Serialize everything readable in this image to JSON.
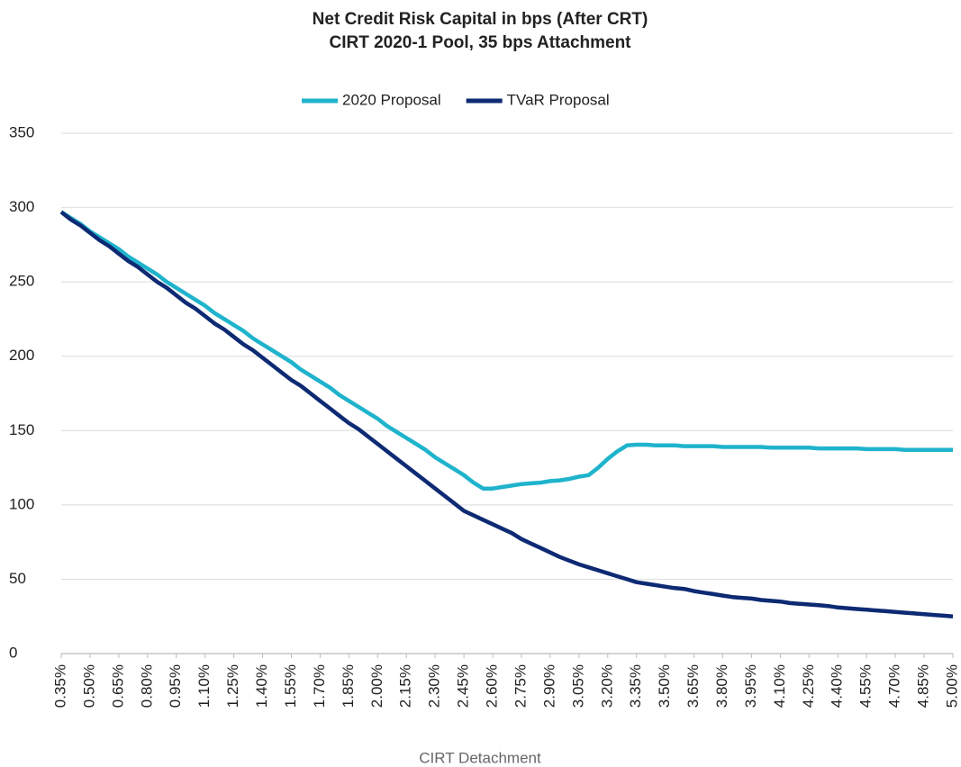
{
  "chart_data": {
    "type": "line",
    "title": [
      "Net Credit Risk Capital in bps (After CRT)",
      "CIRT 2020-1 Pool, 35 bps Attachment"
    ],
    "x_label": "CIRT Detachment",
    "x": [
      0.35,
      0.4,
      0.45,
      0.5,
      0.55,
      0.6,
      0.65,
      0.7,
      0.75,
      0.8,
      0.85,
      0.9,
      0.95,
      1.0,
      1.05,
      1.1,
      1.15,
      1.2,
      1.25,
      1.3,
      1.35,
      1.4,
      1.45,
      1.5,
      1.55,
      1.6,
      1.65,
      1.7,
      1.75,
      1.8,
      1.85,
      1.9,
      1.95,
      2.0,
      2.05,
      2.1,
      2.15,
      2.2,
      2.25,
      2.3,
      2.35,
      2.4,
      2.45,
      2.5,
      2.55,
      2.6,
      2.65,
      2.7,
      2.75,
      2.8,
      2.85,
      2.9,
      2.95,
      3.0,
      3.05,
      3.1,
      3.15,
      3.2,
      3.25,
      3.3,
      3.35,
      3.4,
      3.45,
      3.5,
      3.55,
      3.6,
      3.65,
      3.7,
      3.75,
      3.8,
      3.85,
      3.9,
      3.95,
      4.0,
      4.05,
      4.1,
      4.15,
      4.2,
      4.25,
      4.3,
      4.35,
      4.4,
      4.45,
      4.5,
      4.55,
      4.6,
      4.65,
      4.7,
      4.75,
      4.8,
      4.85,
      4.9,
      4.95,
      5.0
    ],
    "series": [
      {
        "name": "2020 Proposal",
        "color": "#1fb3cc",
        "values": [
          297,
          293,
          289,
          284,
          280,
          276,
          272,
          267,
          263,
          259,
          255,
          250,
          246,
          242,
          238,
          234,
          229,
          225,
          221,
          217,
          212,
          208,
          204,
          200,
          196,
          191,
          187,
          183,
          179,
          174,
          170,
          166,
          162,
          158,
          153,
          149,
          145,
          141,
          137,
          132,
          128,
          124,
          120,
          115,
          111,
          111,
          112,
          113,
          114,
          114.5,
          115,
          116,
          116.5,
          117.5,
          119,
          120,
          125,
          131,
          136,
          140,
          140.5,
          140.5,
          140,
          140,
          140,
          139.5,
          139.5,
          139.5,
          139.5,
          139,
          139,
          139,
          139,
          139,
          138.5,
          138.5,
          138.5,
          138.5,
          138.5,
          138,
          138,
          138,
          138,
          138,
          137.5,
          137.5,
          137.5,
          137.5,
          137,
          137,
          137,
          137,
          137,
          137
        ]
      },
      {
        "name": "TVaR Proposal",
        "color": "#0d2a73",
        "values": [
          297,
          292,
          288,
          283,
          278,
          274,
          269,
          264,
          260,
          255,
          250,
          246,
          241,
          236,
          232,
          227,
          222,
          218,
          213,
          208,
          204,
          199,
          194,
          189,
          184,
          180,
          175,
          170,
          165,
          160,
          155,
          151,
          146,
          141,
          136,
          131,
          126,
          121,
          116,
          111,
          106,
          101,
          96,
          93,
          90,
          87,
          84,
          81,
          77,
          74,
          71,
          68,
          65,
          62.5,
          60,
          58,
          56,
          54,
          52,
          50,
          48,
          47,
          46,
          45,
          44,
          43.5,
          42,
          41,
          40,
          39,
          38,
          37.5,
          37,
          36,
          35.5,
          35,
          34,
          33.5,
          33,
          32.5,
          32,
          31,
          30.5,
          30,
          29.5,
          29,
          28.5,
          28,
          27.5,
          27,
          26.5,
          26,
          25.5,
          25
        ]
      }
    ],
    "xlim": [
      0.35,
      5.0
    ],
    "xticks": [
      {
        "value": 0.35,
        "label": "0.35%"
      },
      {
        "value": 0.5,
        "label": "0.50%"
      },
      {
        "value": 0.65,
        "label": "0.65%"
      },
      {
        "value": 0.8,
        "label": "0.80%"
      },
      {
        "value": 0.95,
        "label": "0.95%"
      },
      {
        "value": 1.1,
        "label": "1.10%"
      },
      {
        "value": 1.25,
        "label": "1.25%"
      },
      {
        "value": 1.4,
        "label": "1.40%"
      },
      {
        "value": 1.55,
        "label": "1.55%"
      },
      {
        "value": 1.7,
        "label": "1.70%"
      },
      {
        "value": 1.85,
        "label": "1.85%"
      },
      {
        "value": 2.0,
        "label": "2.00%"
      },
      {
        "value": 2.15,
        "label": "2.15%"
      },
      {
        "value": 2.3,
        "label": "2.30%"
      },
      {
        "value": 2.45,
        "label": "2.45%"
      },
      {
        "value": 2.6,
        "label": "2.60%"
      },
      {
        "value": 2.75,
        "label": "2.75%"
      },
      {
        "value": 2.9,
        "label": "2.90%"
      },
      {
        "value": 3.05,
        "label": "3.05%"
      },
      {
        "value": 3.2,
        "label": "3.20%"
      },
      {
        "value": 3.35,
        "label": "3.35%"
      },
      {
        "value": 3.5,
        "label": "3.50%"
      },
      {
        "value": 3.65,
        "label": "3.65%"
      },
      {
        "value": 3.8,
        "label": "3.80%"
      },
      {
        "value": 3.95,
        "label": "3.95%"
      },
      {
        "value": 4.1,
        "label": "4.10%"
      },
      {
        "value": 4.25,
        "label": "4.25%"
      },
      {
        "value": 4.4,
        "label": "4.40%"
      },
      {
        "value": 4.55,
        "label": "4.55%"
      },
      {
        "value": 4.7,
        "label": "4.70%"
      },
      {
        "value": 4.85,
        "label": "4.85%"
      },
      {
        "value": 5.0,
        "label": "5.00%"
      }
    ],
    "ylim": [
      0,
      350
    ],
    "yticks": [
      0,
      50,
      100,
      150,
      200,
      250,
      300,
      350
    ],
    "grid": true,
    "legend": "top"
  }
}
